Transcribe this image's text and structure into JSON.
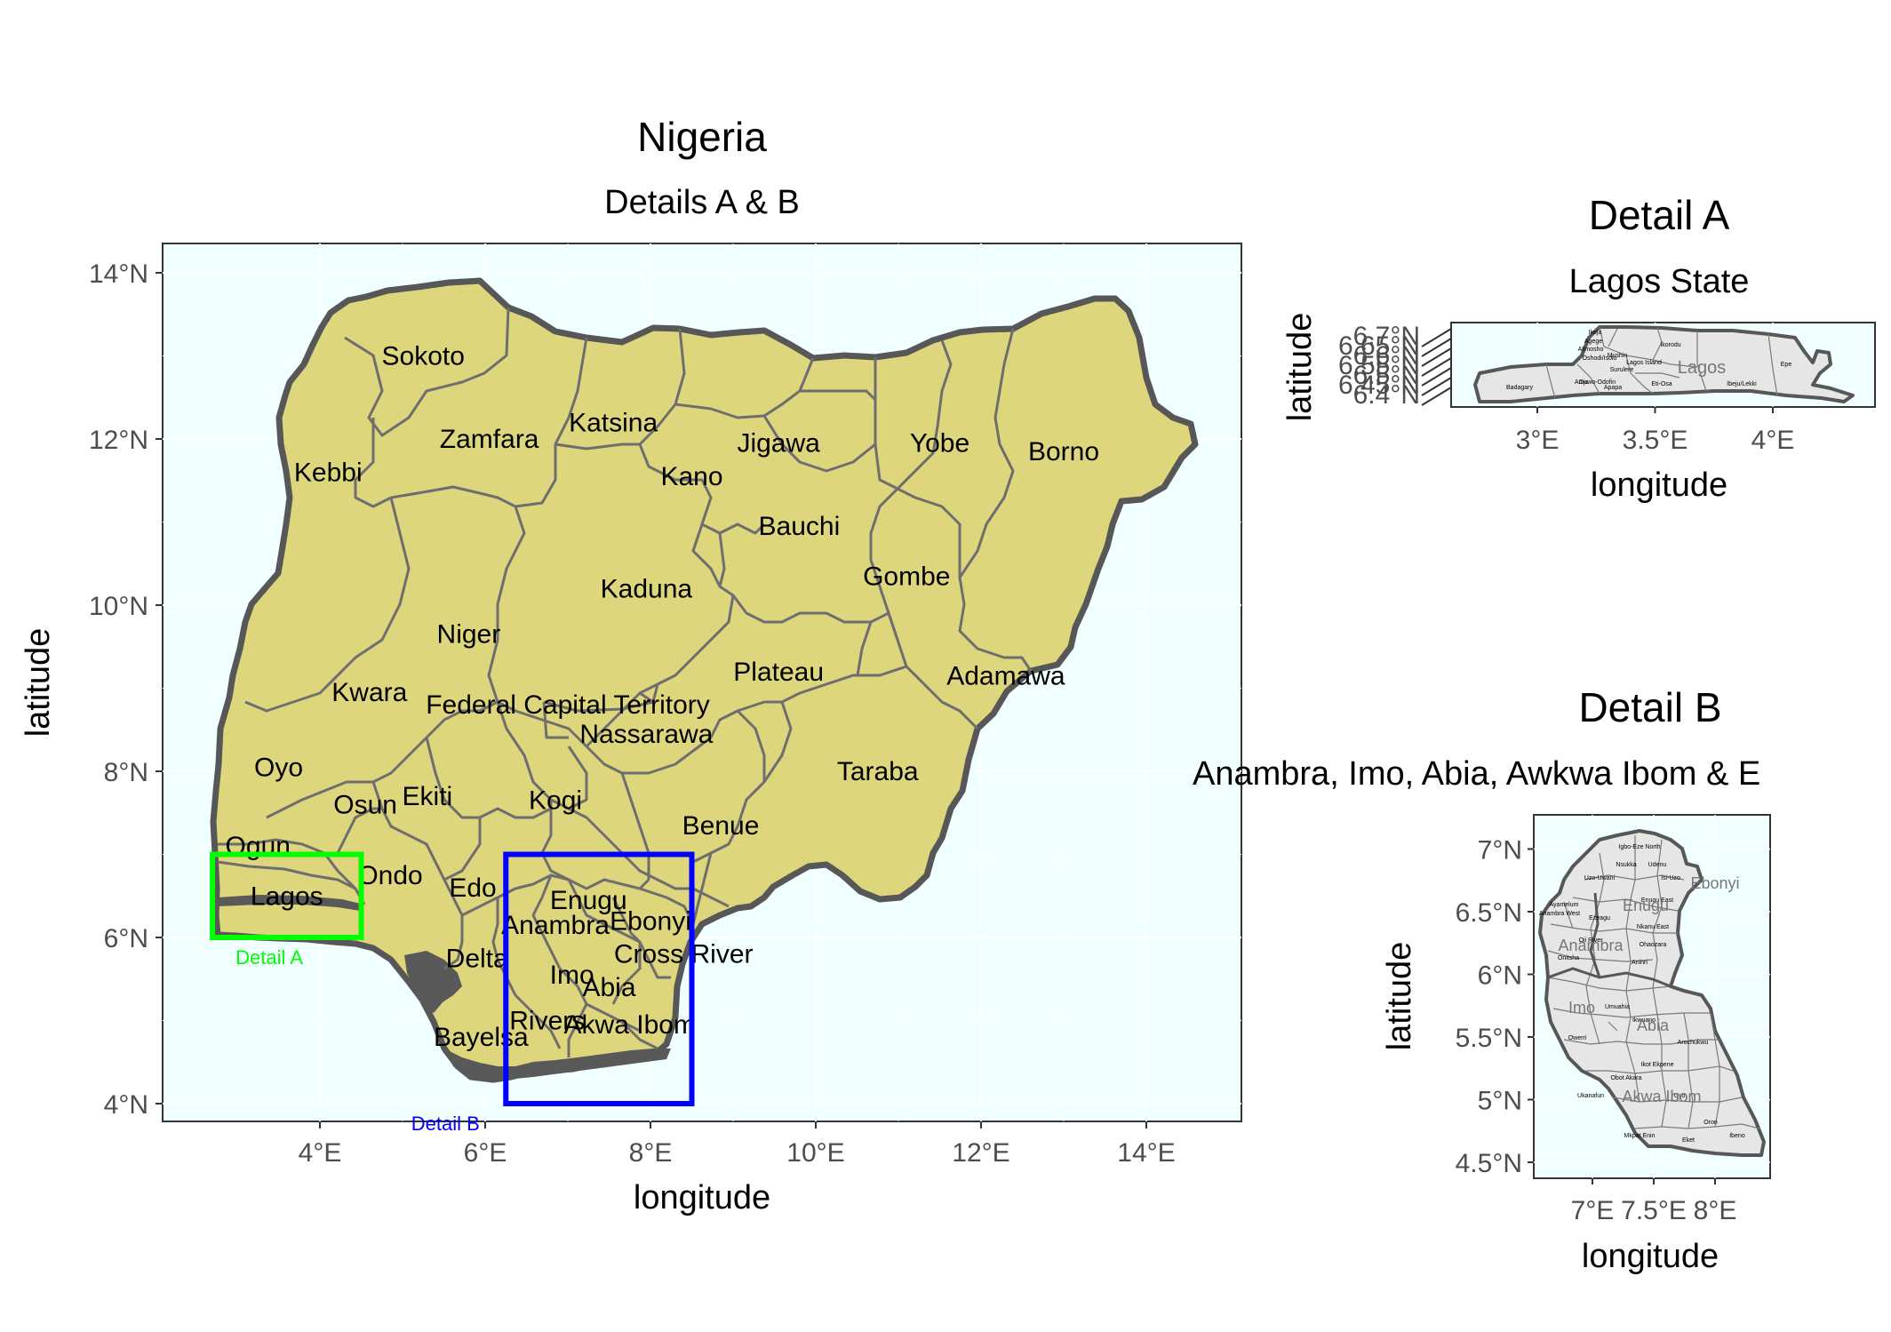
{
  "main_map": {
    "title": "Nigeria",
    "subtitle": "Details A & B",
    "xlabel": "longitude",
    "ylabel": "latitude",
    "x_ticks": [
      "4°E",
      "6°E",
      "8°E",
      "10°E",
      "12°E",
      "14°E"
    ],
    "y_ticks": [
      "4°N",
      "6°N",
      "8°N",
      "10°N",
      "12°N",
      "14°N"
    ],
    "states": [
      {
        "name": "Sokoto",
        "lon": 5.25,
        "lat": 13.0
      },
      {
        "name": "Zamfara",
        "lon": 6.05,
        "lat": 12.0
      },
      {
        "name": "Katsina",
        "lon": 7.55,
        "lat": 12.2
      },
      {
        "name": "Kebbi",
        "lon": 4.1,
        "lat": 11.6
      },
      {
        "name": "Jigawa",
        "lon": 9.55,
        "lat": 11.95
      },
      {
        "name": "Yobe",
        "lon": 11.5,
        "lat": 11.95
      },
      {
        "name": "Borno",
        "lon": 13.0,
        "lat": 11.85
      },
      {
        "name": "Kano",
        "lon": 8.5,
        "lat": 11.55
      },
      {
        "name": "Bauchi",
        "lon": 9.8,
        "lat": 10.95
      },
      {
        "name": "Gombe",
        "lon": 11.1,
        "lat": 10.35
      },
      {
        "name": "Kaduna",
        "lon": 7.95,
        "lat": 10.2
      },
      {
        "name": "Niger",
        "lon": 5.8,
        "lat": 9.65
      },
      {
        "name": "Plateau",
        "lon": 9.55,
        "lat": 9.2
      },
      {
        "name": "Adamawa",
        "lon": 12.3,
        "lat": 9.15
      },
      {
        "name": "Kwara",
        "lon": 4.6,
        "lat": 8.95
      },
      {
        "name": "Federal Capital Territory",
        "lon": 7.0,
        "lat": 8.8
      },
      {
        "name": "Nassarawa",
        "lon": 7.95,
        "lat": 8.45
      },
      {
        "name": "Oyo",
        "lon": 3.5,
        "lat": 8.05
      },
      {
        "name": "Taraba",
        "lon": 10.75,
        "lat": 8.0
      },
      {
        "name": "Osun",
        "lon": 4.55,
        "lat": 7.6
      },
      {
        "name": "Ekiti",
        "lon": 5.3,
        "lat": 7.7
      },
      {
        "name": "Kogi",
        "lon": 6.85,
        "lat": 7.65
      },
      {
        "name": "Benue",
        "lon": 8.85,
        "lat": 7.35
      },
      {
        "name": "Ogun",
        "lon": 3.25,
        "lat": 7.1
      },
      {
        "name": "Ondo",
        "lon": 4.85,
        "lat": 6.75
      },
      {
        "name": "Edo",
        "lon": 5.85,
        "lat": 6.6
      },
      {
        "name": "Lagos",
        "lon": 3.6,
        "lat": 6.5
      },
      {
        "name": "Enugu",
        "lon": 7.25,
        "lat": 6.45
      },
      {
        "name": "Anambra",
        "lon": 6.85,
        "lat": 6.15
      },
      {
        "name": "Ebonyi",
        "lon": 8.0,
        "lat": 6.2
      },
      {
        "name": "Delta",
        "lon": 5.9,
        "lat": 5.75
      },
      {
        "name": "Cross River",
        "lon": 8.4,
        "lat": 5.8
      },
      {
        "name": "Imo",
        "lon": 7.05,
        "lat": 5.55
      },
      {
        "name": "Abia",
        "lon": 7.5,
        "lat": 5.4
      },
      {
        "name": "Rivers",
        "lon": 6.75,
        "lat": 5.0
      },
      {
        "name": "Akwa Ibom",
        "lon": 7.75,
        "lat": 4.95
      },
      {
        "name": "Bayelsa",
        "lon": 5.95,
        "lat": 4.8
      }
    ],
    "detail_boxes": [
      {
        "label": "Detail A",
        "color": "#00ff00",
        "lon_min": 2.7,
        "lon_max": 4.5,
        "lat_min": 6.0,
        "lat_max": 7.0
      },
      {
        "label": "Detail B",
        "color": "#0000ff",
        "lon_min": 6.25,
        "lon_max": 8.5,
        "lat_min": 4.0,
        "lat_max": 7.0
      }
    ]
  },
  "detail_a": {
    "title": "Detail A",
    "subtitle": "Lagos State",
    "xlabel": "longitude",
    "ylabel": "latitude",
    "x_ticks": [
      "3°E",
      "3.5°E",
      "4°E"
    ],
    "y_ticks": [
      "6.4°N",
      "6.45°N",
      "6.5°N",
      "6.55°N",
      "6.6°N",
      "6.65°N",
      "6.7°N"
    ],
    "area_label": "Lagos",
    "lgas": [
      "Ikeja",
      "Agege",
      "Alimosho",
      "Ikorodu",
      "Oshodi/Isolo",
      "Mushin",
      "Lagos Island",
      "Surulere",
      "Apapa",
      "Eti-Osa",
      "Ojo",
      "Amuwo-Odofin",
      "Badagary",
      "Ibeju/Lekki",
      "Epe"
    ]
  },
  "detail_b": {
    "title": "Detail B",
    "subtitle": "Anambra, Imo, Abia, Awkwa Ibom & E",
    "xlabel": "longitude",
    "ylabel": "latitude",
    "x_ticks": [
      "7°E",
      "7.5°E",
      "8°E"
    ],
    "y_ticks": [
      "4.5°N",
      "5°N",
      "5.5°N",
      "6°N",
      "6.5°N",
      "7°N"
    ],
    "area_labels": [
      "Enugu",
      "Anambra",
      "Imo",
      "Abia",
      "Akwa Ibom",
      "Ebonyi"
    ],
    "lgas": [
      "Igbo-Eze North",
      "Nsukka",
      "Udenu",
      "Uzo-Uwani",
      "Isi-Uzo",
      "Enugu East",
      "Ayamelum",
      "Anambra West",
      "Ezeagu",
      "Nkanu East",
      "Oji River",
      "Aninri",
      "Onitsha",
      "Ohaozara",
      "Owerri",
      "Umuahia",
      "Ikwuano",
      "Arochukwu",
      "Uyo",
      "Ikot Ekpene",
      "Mkpat Enin",
      "Oron",
      "Eket",
      "Ibeno",
      "Ukanafun",
      "Obot Akara"
    ]
  },
  "colors": {
    "panel_bg": "#f0ffff",
    "land_fill": "#ded67d",
    "detail_fill": "#e6e6e6",
    "border": "#575757",
    "state_line": "#6e6e6e",
    "grid": "#ffffff",
    "coast_dark": "#595959"
  }
}
